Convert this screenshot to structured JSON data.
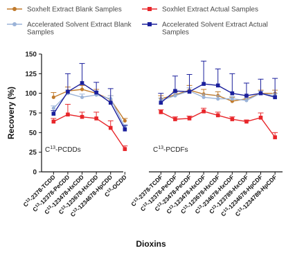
{
  "chart_data": {
    "type": "line",
    "ylabel": "Recovery (%)",
    "xlabel": "Dioxins",
    "ylim": [
      0,
      150
    ],
    "yticks": [
      0,
      25,
      50,
      75,
      100,
      125,
      150
    ],
    "groups": [
      {
        "label": "C13-PCDDs",
        "label_base": "C",
        "label_sup": "13",
        "label_rest": "-PCDDs",
        "categories": [
          "2378-TCDD",
          "12378-PeCDD",
          "123478-HxCDD",
          "123678-HxCDD",
          "1234678-HpCDD",
          "OCDD"
        ]
      },
      {
        "label": "C13-PCDFs",
        "label_base": "C",
        "label_sup": "13",
        "label_rest": "-PCDFs",
        "categories": [
          "2378-TCDF",
          "12378-PeCDF",
          "23478-PeCDF",
          "123478-HxCDF",
          "123678-HxCDF",
          "234678-HxCDF",
          "123789-HxCDF",
          "1234678-HpCDF",
          "1234789-HpCDF"
        ]
      }
    ],
    "category_prefix": "C",
    "category_prefix_sup": "13",
    "series": [
      {
        "name": "Soxhelt Extract Blank Samples",
        "color": "#c07a2b",
        "marker": "circle",
        "values": [
          [
            95,
            103,
            105,
            100,
            92,
            65
          ],
          [
            93,
            98,
            104,
            99,
            97,
            90,
            93,
            100,
            100
          ]
        ],
        "errors": [
          [
            6,
            5,
            5,
            5,
            5,
            3
          ],
          [
            4,
            4,
            6,
            6,
            5,
            5,
            4,
            4,
            4
          ]
        ]
      },
      {
        "name": "Soxhlet Extract Actual Samples",
        "color": "#e8262a",
        "marker": "square",
        "values": [
          [
            64,
            73,
            70,
            68,
            56,
            29
          ],
          [
            76,
            67,
            68,
            77,
            72,
            67,
            64,
            69,
            44
          ]
        ],
        "errors": [
          [
            4,
            13,
            6,
            8,
            9,
            4
          ],
          [
            3,
            3,
            3,
            4,
            4,
            3,
            2,
            6,
            6
          ]
        ]
      },
      {
        "name": "Accelerated Solvent Extract Blank Samples",
        "color": "#9bb3d8",
        "marker": "circle",
        "values": [
          [
            81,
            100,
            95,
            98,
            93,
            57
          ],
          [
            91,
            97,
            103,
            95,
            93,
            93,
            91,
            100,
            97
          ]
        ],
        "errors": [
          [
            3,
            4,
            4,
            4,
            4,
            3
          ],
          [
            3,
            3,
            4,
            4,
            4,
            3,
            3,
            3,
            3
          ]
        ]
      },
      {
        "name": "Accelerated Solvent Extract Actual Samples",
        "color": "#1a1f9c",
        "marker": "square",
        "values": [
          [
            74,
            102,
            113,
            101,
            88,
            54
          ],
          [
            88,
            103,
            102,
            112,
            110,
            100,
            97,
            100,
            95
          ]
        ],
        "errors": [
          [
            4,
            23,
            25,
            13,
            18,
            5
          ],
          [
            12,
            19,
            22,
            29,
            21,
            25,
            16,
            18,
            24
          ]
        ]
      }
    ],
    "legend_position": "top"
  }
}
